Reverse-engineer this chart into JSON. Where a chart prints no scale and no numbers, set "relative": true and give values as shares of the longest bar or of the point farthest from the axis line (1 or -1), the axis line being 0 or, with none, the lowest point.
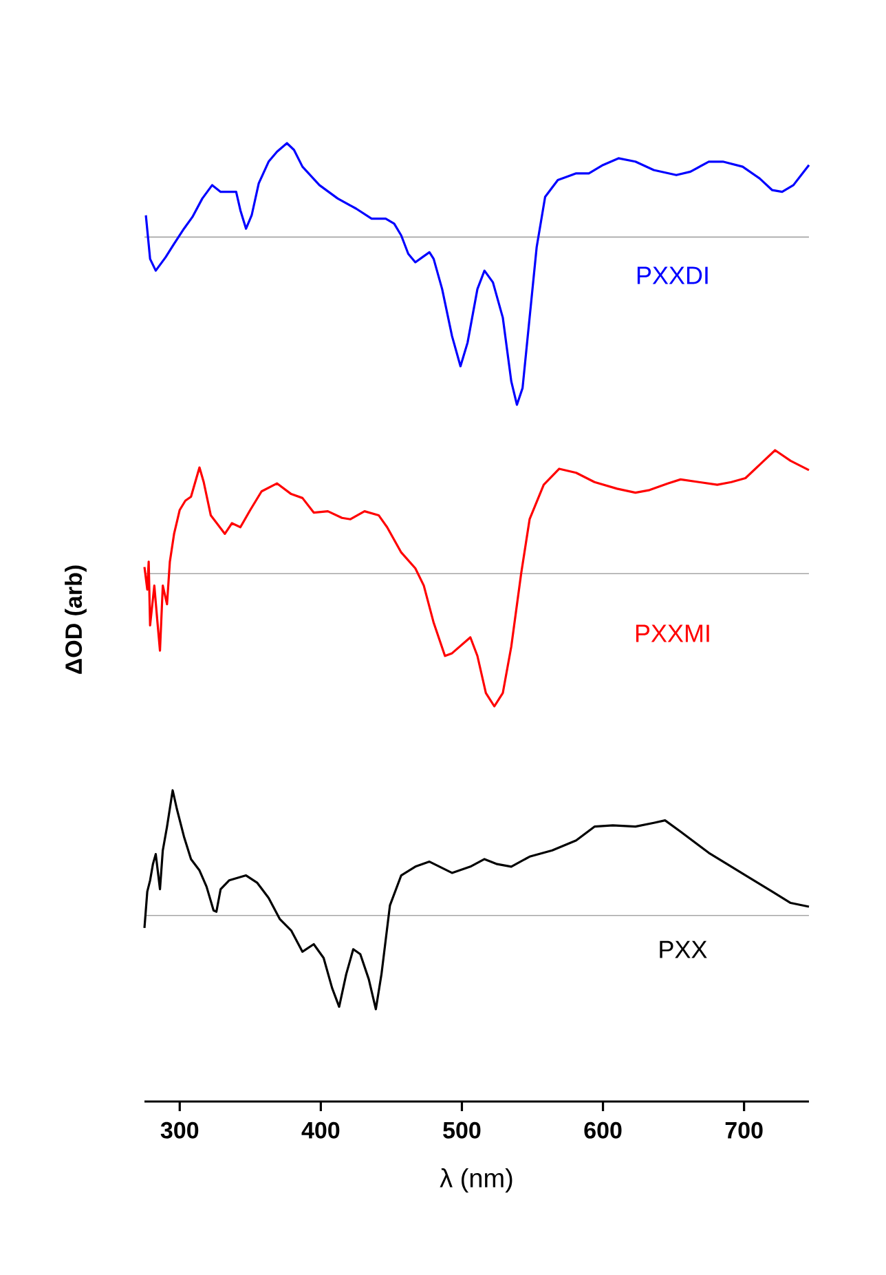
{
  "chart_data": [
    {
      "type": "line",
      "relative": true,
      "xlim": [
        275,
        746
      ],
      "tick_labels": false,
      "legend": false,
      "x": [
        276,
        279,
        283,
        290,
        296,
        303,
        309,
        316,
        323,
        329,
        335,
        340,
        343,
        347,
        351,
        356,
        363,
        369,
        376,
        381,
        387,
        399,
        412,
        425,
        436,
        446,
        452,
        457,
        462,
        467,
        472,
        477,
        480,
        486,
        493,
        499,
        504,
        511,
        516,
        522,
        529,
        535,
        539,
        543,
        548,
        553,
        559,
        568,
        581,
        590,
        600,
        611,
        623,
        636,
        652,
        662,
        675,
        685,
        699,
        711,
        720,
        727,
        735,
        746
      ],
      "series": [
        {
          "name": "PXXDI",
          "color": "#0000ff",
          "values": [
            0.13,
            -0.13,
            -0.2,
            -0.12,
            -0.04,
            0.05,
            0.12,
            0.23,
            0.31,
            0.27,
            0.27,
            0.27,
            0.16,
            0.05,
            0.13,
            0.32,
            0.45,
            0.51,
            0.56,
            0.52,
            0.42,
            0.31,
            0.23,
            0.17,
            0.11,
            0.11,
            0.08,
            0.01,
            -0.1,
            -0.15,
            -0.12,
            -0.09,
            -0.13,
            -0.31,
            -0.59,
            -0.77,
            -0.63,
            -0.31,
            -0.2,
            -0.27,
            -0.48,
            -0.86,
            -1,
            -0.9,
            -0.48,
            -0.06,
            0.24,
            0.34,
            0.38,
            0.38,
            0.43,
            0.47,
            0.45,
            0.4,
            0.37,
            0.39,
            0.45,
            0.45,
            0.42,
            0.35,
            0.28,
            0.27,
            0.31,
            0.43
          ]
        }
      ]
    },
    {
      "type": "line",
      "relative": true,
      "xlim": [
        275,
        746
      ],
      "tick_labels": false,
      "legend": false,
      "ylabel": "**ΔOD (arb)**",
      "x": [
        275,
        277,
        278,
        279,
        282,
        284,
        286,
        288,
        291,
        293,
        296,
        300,
        304,
        308,
        311,
        314,
        317,
        322,
        327,
        332,
        337,
        343,
        350,
        358,
        369,
        379,
        387,
        395,
        405,
        415,
        421,
        431,
        441,
        447,
        457,
        467,
        473,
        480,
        488,
        493,
        506,
        511,
        517,
        523,
        529,
        535,
        542,
        548,
        558,
        569,
        581,
        594,
        610,
        623,
        633,
        646,
        655,
        668,
        681,
        691,
        701,
        714,
        722,
        733,
        746
      ],
      "series": [
        {
          "name": "PXXMI",
          "color": "#ff0000",
          "values": [
            0.05,
            -0.12,
            0.09,
            -0.39,
            -0.09,
            -0.34,
            -0.58,
            -0.09,
            -0.23,
            0.09,
            0.3,
            0.48,
            0.55,
            0.58,
            0.69,
            0.8,
            0.69,
            0.44,
            0.37,
            0.3,
            0.38,
            0.35,
            0.48,
            0.62,
            0.68,
            0.6,
            0.57,
            0.46,
            0.47,
            0.42,
            0.41,
            0.47,
            0.44,
            0.35,
            0.16,
            0.04,
            -0.09,
            -0.37,
            -0.62,
            -0.6,
            -0.48,
            -0.62,
            -0.9,
            -1,
            -0.9,
            -0.55,
            0,
            0.41,
            0.67,
            0.79,
            0.76,
            0.69,
            0.64,
            0.61,
            0.63,
            0.68,
            0.71,
            0.69,
            0.67,
            0.69,
            0.72,
            0.85,
            0.93,
            0.85,
            0.78
          ]
        }
      ]
    },
    {
      "type": "line",
      "relative": true,
      "xlim": [
        275,
        746
      ],
      "tick_labels": "x",
      "legend": false,
      "xlabel": "λ (nm)",
      "xticks": [
        300,
        400,
        500,
        600,
        700
      ],
      "x": [
        275,
        277,
        279,
        281,
        283,
        286,
        288,
        291,
        295,
        298,
        303,
        308,
        314,
        319,
        324,
        326,
        329,
        335,
        347,
        355,
        363,
        371,
        379,
        387,
        395,
        402,
        408,
        413,
        418,
        423,
        428,
        434,
        439,
        443,
        449,
        457,
        467,
        477,
        493,
        506,
        516,
        525,
        535,
        548,
        564,
        581,
        594,
        607,
        623,
        636,
        644,
        655,
        675,
        688,
        704,
        720,
        733,
        746
      ],
      "series": [
        {
          "name": "PXX",
          "color": "#000000",
          "values": [
            -0.1,
            0.19,
            0.28,
            0.41,
            0.49,
            0.21,
            0.52,
            0.71,
            1,
            0.85,
            0.63,
            0.45,
            0.36,
            0.23,
            0.04,
            0.03,
            0.21,
            0.28,
            0.32,
            0.26,
            0.14,
            -0.03,
            -0.12,
            -0.29,
            -0.23,
            -0.34,
            -0.58,
            -0.73,
            -0.47,
            -0.27,
            -0.31,
            -0.51,
            -0.75,
            -0.47,
            0.08,
            0.32,
            0.39,
            0.43,
            0.34,
            0.39,
            0.45,
            0.41,
            0.39,
            0.47,
            0.52,
            0.6,
            0.71,
            0.72,
            0.71,
            0.74,
            0.76,
            0.67,
            0.5,
            0.41,
            0.3,
            0.19,
            0.1,
            0.07
          ]
        }
      ]
    }
  ]
}
